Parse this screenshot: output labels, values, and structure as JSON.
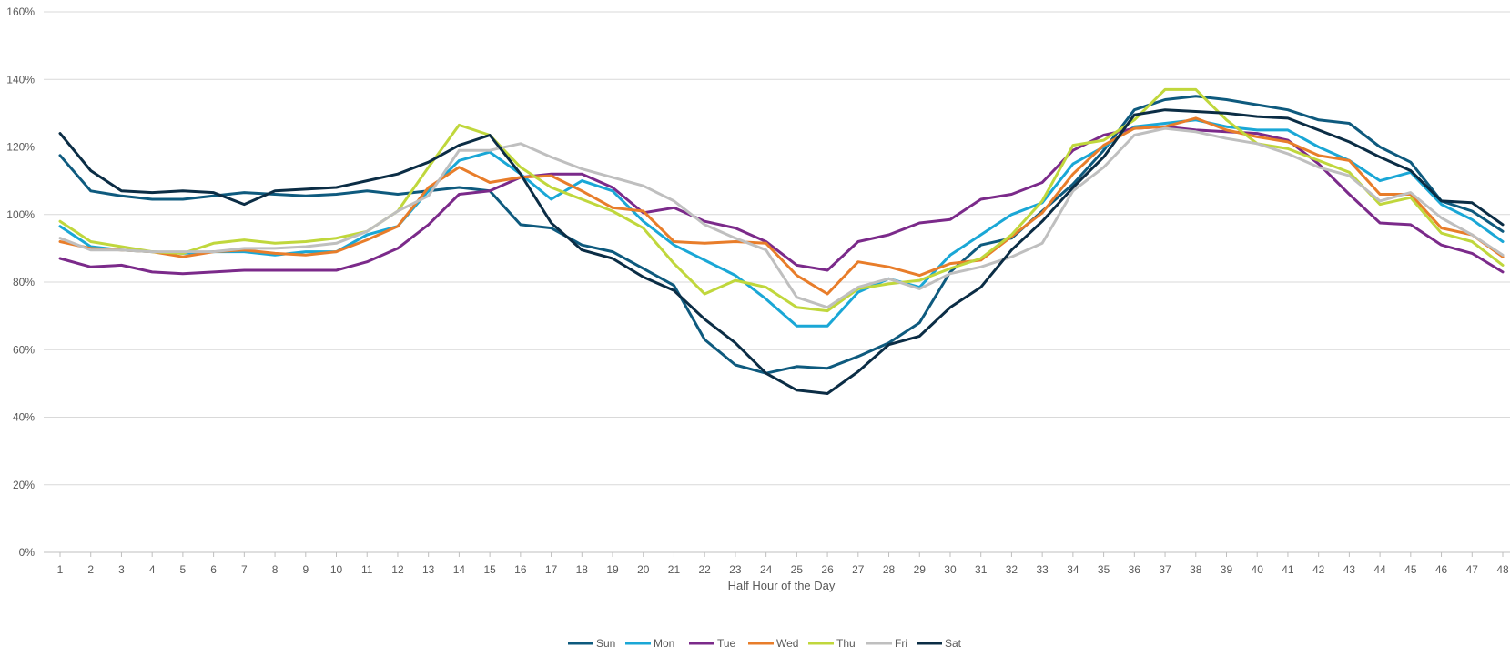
{
  "chart_data": {
    "type": "line",
    "title": "",
    "xlabel": "Half Hour of the Day",
    "ylabel": "",
    "ylim": [
      0,
      160
    ],
    "y_ticks": [
      0,
      20,
      40,
      60,
      80,
      100,
      120,
      140,
      160
    ],
    "y_tick_labels": [
      "0%",
      "20%",
      "40%",
      "60%",
      "80%",
      "100%",
      "120%",
      "140%",
      "160%"
    ],
    "x": [
      "1",
      "2",
      "3",
      "4",
      "5",
      "6",
      "7",
      "8",
      "9",
      "10",
      "11",
      "12",
      "13",
      "14",
      "15",
      "16",
      "17",
      "18",
      "19",
      "20",
      "21",
      "22",
      "23",
      "24",
      "25",
      "26",
      "27",
      "28",
      "29",
      "30",
      "31",
      "32",
      "33",
      "34",
      "35",
      "36",
      "37",
      "38",
      "39",
      "40",
      "41",
      "42",
      "43",
      "44",
      "45",
      "46",
      "47",
      "48"
    ],
    "grid": true,
    "legend_position": "bottom",
    "series": [
      {
        "name": "Sun",
        "color": "#0e5a7e",
        "values": [
          117.5,
          107,
          105.5,
          104.5,
          104.5,
          105.5,
          106.5,
          106,
          105.5,
          106,
          107,
          106,
          107,
          108,
          107,
          97,
          96,
          91,
          89,
          84,
          79,
          63,
          55.5,
          53,
          55,
          54.5,
          58,
          62,
          68,
          83,
          91,
          93,
          101,
          109,
          119,
          131,
          134,
          135,
          134,
          132.5,
          131,
          128,
          127,
          120,
          115.5,
          104,
          101,
          95
        ]
      },
      {
        "name": "Mon",
        "color": "#1aa7d6",
        "values": [
          96.5,
          90.5,
          89.5,
          89,
          88.5,
          89,
          89,
          88,
          89,
          89,
          94,
          96.5,
          107,
          116,
          118.5,
          112,
          104.5,
          110,
          107,
          98,
          91,
          86.5,
          82,
          75,
          67,
          67,
          77,
          81,
          78.5,
          88,
          94,
          100,
          103.5,
          115,
          120,
          126,
          127,
          128,
          126,
          125,
          125,
          120,
          116,
          110,
          112.5,
          103,
          98.5,
          92
        ]
      },
      {
        "name": "Tue",
        "color": "#7b2a8a",
        "values": [
          87,
          84.5,
          85,
          83,
          82.5,
          83,
          83.5,
          83.5,
          83.5,
          83.5,
          86,
          90,
          97,
          106,
          107,
          111,
          112,
          112,
          108,
          100.5,
          102,
          98,
          96,
          92,
          85,
          83.5,
          92,
          94,
          97.5,
          98.5,
          104.5,
          106,
          109.5,
          119,
          123.5,
          125.5,
          126,
          125,
          124.5,
          124,
          122,
          115,
          106,
          97.5,
          97,
          91,
          88.5,
          83
        ]
      },
      {
        "name": "Wed",
        "color": "#e87d2a",
        "values": [
          92,
          90,
          89.5,
          89,
          87.5,
          89,
          89.5,
          88.5,
          88,
          89,
          92.5,
          96.5,
          108,
          114,
          109.5,
          111,
          111.5,
          107,
          102,
          101,
          92,
          91.5,
          92,
          91.5,
          82,
          76.5,
          86,
          84.5,
          82,
          85.5,
          86.5,
          93.5,
          100.5,
          112,
          120.5,
          125.5,
          126,
          128.5,
          125,
          123,
          121.5,
          117.5,
          116,
          106,
          106,
          96,
          94,
          87.5
        ]
      },
      {
        "name": "Thu",
        "color": "#c0d73c",
        "values": [
          98,
          92,
          90.5,
          89,
          88.5,
          91.5,
          92.5,
          91.5,
          92,
          93,
          95,
          101,
          114,
          126.5,
          123.5,
          114,
          108,
          104.5,
          101,
          96,
          85.5,
          76.5,
          80.5,
          78.5,
          72.5,
          71.5,
          78,
          79.5,
          80.5,
          84,
          87,
          94,
          104,
          120.5,
          122,
          128,
          137,
          137,
          128,
          121,
          119.5,
          116,
          112.5,
          103,
          105,
          94.5,
          92,
          85
        ]
      },
      {
        "name": "Fri",
        "color": "#bfbfbf",
        "values": [
          93,
          89.5,
          89.5,
          89,
          89,
          89,
          90,
          90,
          90.5,
          91.5,
          95,
          101,
          105.5,
          119,
          119,
          121,
          117,
          113.5,
          111,
          108.5,
          104,
          97,
          93,
          89.5,
          75.5,
          72.5,
          78.5,
          81,
          78,
          82.5,
          84.5,
          87.5,
          91.5,
          107,
          114,
          123.5,
          125.5,
          124.5,
          122.5,
          121,
          118,
          114,
          111.5,
          104,
          106.5,
          99,
          94,
          88
        ]
      },
      {
        "name": "Sat",
        "color": "#0b2d45",
        "values": [
          124,
          113,
          107,
          106.5,
          107,
          106.5,
          103,
          107,
          107.5,
          108,
          110,
          112,
          115.5,
          120.5,
          123.5,
          112,
          97.5,
          89.5,
          87,
          81.5,
          77.5,
          69,
          62,
          53,
          48,
          47,
          53.5,
          61.5,
          64,
          72.5,
          78.5,
          89.5,
          98,
          108,
          117,
          129.5,
          131,
          130.5,
          130,
          129,
          128.5,
          125,
          121.5,
          117,
          113,
          104,
          103.5,
          97
        ]
      }
    ]
  }
}
